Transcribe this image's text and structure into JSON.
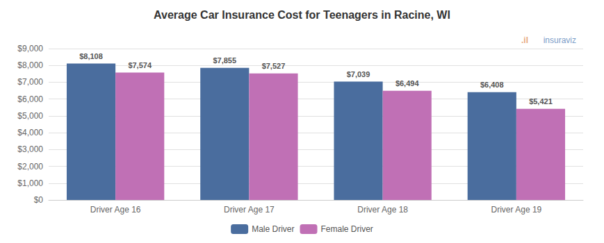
{
  "chart_data": {
    "type": "bar",
    "title": "Average Car Insurance Cost for Teenagers in Racine, WI",
    "categories": [
      "Driver Age 16",
      "Driver Age 17",
      "Driver Age 18",
      "Driver Age 19"
    ],
    "series": [
      {
        "name": "Male Driver",
        "color": "#4a6d9e",
        "values": [
          8108,
          7855,
          7039,
          6408
        ],
        "value_labels": [
          "$8,108",
          "$7,855",
          "$7,039",
          "$6,408"
        ]
      },
      {
        "name": "Female Driver",
        "color": "#c070b5",
        "values": [
          7574,
          7527,
          6494,
          5421
        ],
        "value_labels": [
          "$7,574",
          "$7,527",
          "$6,494",
          "$5,421"
        ]
      }
    ],
    "ylim": [
      0,
      9000
    ],
    "yticks": [
      {
        "value": 0,
        "label": "$0"
      },
      {
        "value": 1000,
        "label": "$1,000"
      },
      {
        "value": 2000,
        "label": "$2,000"
      },
      {
        "value": 3000,
        "label": "$3,000"
      },
      {
        "value": 4000,
        "label": "$4,000"
      },
      {
        "value": 5000,
        "label": "$5,000"
      },
      {
        "value": 6000,
        "label": "$6,000"
      },
      {
        "value": 7000,
        "label": "$7,000"
      },
      {
        "value": 8000,
        "label": "$8,000"
      },
      {
        "value": 9000,
        "label": "$9,000"
      }
    ],
    "grid": true,
    "legend": "bottom",
    "data_labels": true,
    "annotations": [
      {
        "text": ".il",
        "color": "#e8a87c"
      },
      {
        "text": "insuraviz",
        "color": "#7a9cc8"
      }
    ]
  }
}
